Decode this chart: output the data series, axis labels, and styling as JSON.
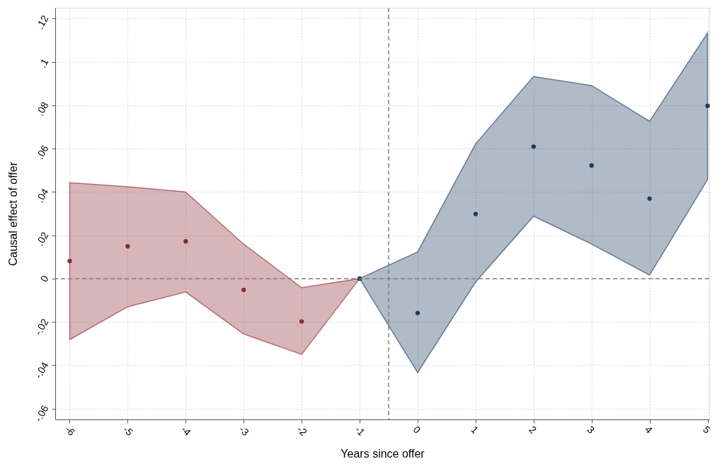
{
  "chart_data": {
    "type": "scatter",
    "xlabel": "Years since offer",
    "ylabel": "Causal effect of offer",
    "xlim": [
      -6.25,
      5.03
    ],
    "ylim": [
      -0.065,
      0.125
    ],
    "xticks": [
      -6,
      -5,
      -4,
      -3,
      -2,
      -1,
      0,
      1,
      2,
      3,
      4,
      5
    ],
    "yticks": [
      {
        "value": -0.06,
        "label": "-.06"
      },
      {
        "value": -0.04,
        "label": "-.04"
      },
      {
        "value": -0.02,
        "label": "-.02"
      },
      0,
      {
        "value": 0.02,
        "label": ".02"
      },
      {
        "value": 0.04,
        "label": ".04"
      },
      {
        "value": 0.06,
        "label": ".06"
      },
      {
        "value": 0.08,
        "label": ".08"
      },
      {
        "value": 0.1,
        "label": ".1"
      },
      {
        "value": 0.12,
        "label": ".12"
      }
    ],
    "grid": true,
    "marker": "circle",
    "series": [
      {
        "color": "#8b2a33",
        "x": [
          -6,
          -5,
          -4,
          -3,
          -2,
          -1
        ],
        "values": [
          0.0081,
          0.0149,
          0.0172,
          -0.0052,
          -0.0198,
          0
        ],
        "lower": [
          -0.0282,
          -0.013,
          -0.0062,
          -0.0256,
          -0.035,
          0
        ],
        "upper": [
          0.0443,
          0.0424,
          0.04,
          0.0159,
          -0.0042,
          0
        ]
      },
      {
        "color": "#1a3d5f",
        "x": [
          -1,
          0,
          1,
          2,
          3,
          4,
          5
        ],
        "values": [
          0,
          -0.0159,
          0.0298,
          0.0609,
          0.0522,
          0.0369,
          0.0797
        ],
        "lower": [
          0,
          -0.0434,
          -0.0016,
          0.0288,
          0.0159,
          0.0016,
          0.0457
        ],
        "upper": [
          0,
          0.0123,
          0.0622,
          0.0933,
          0.0891,
          0.0726,
          0.1134
        ]
      }
    ],
    "ref_lines": [
      {
        "axis": "x",
        "value": -0.5,
        "line_style": "dashed",
        "color": "#808080"
      },
      {
        "axis": "y",
        "value": 0,
        "line_style": "dashed",
        "color": "#808080"
      }
    ]
  }
}
